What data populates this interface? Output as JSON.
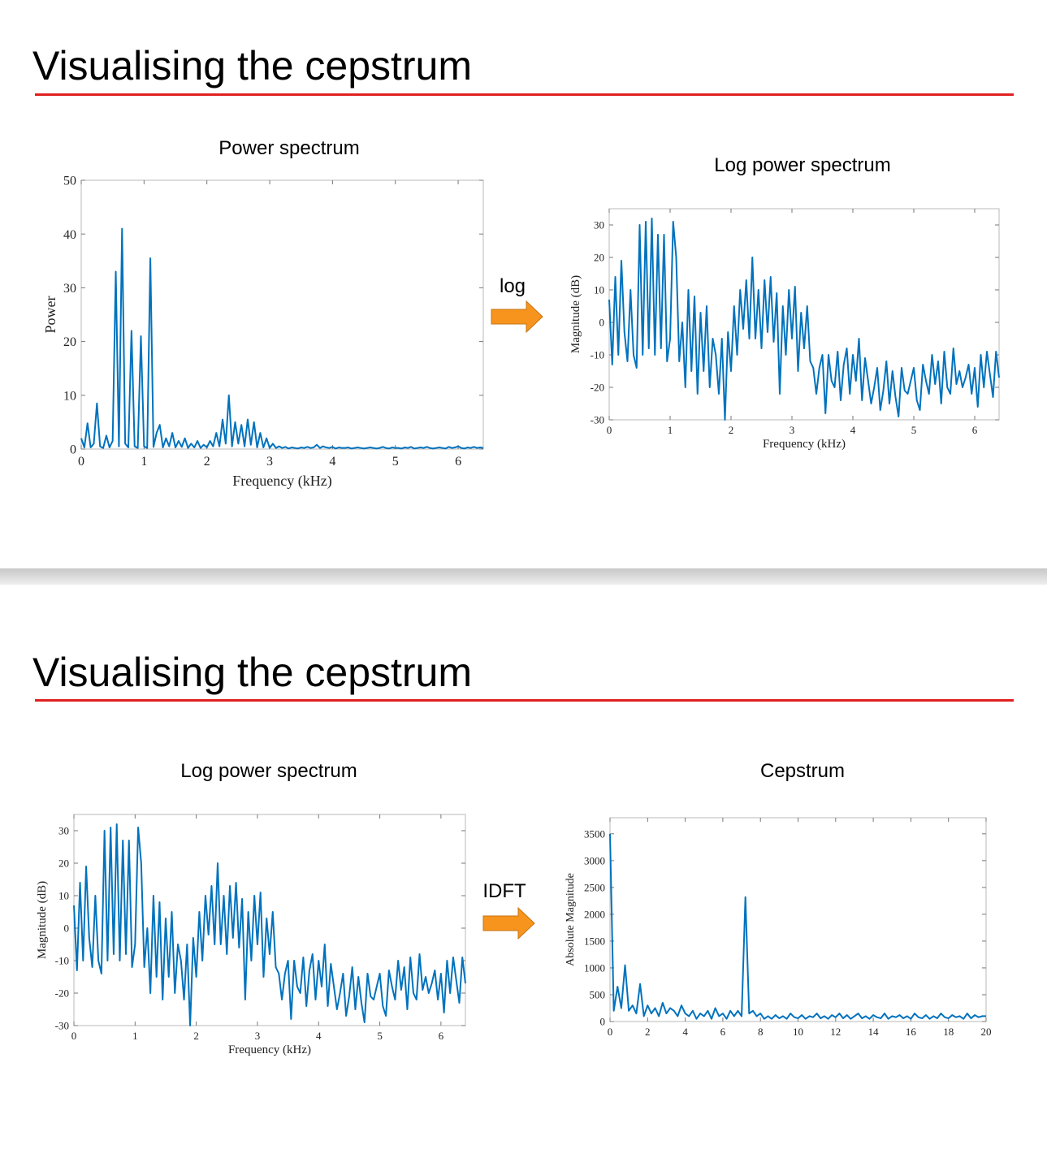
{
  "slides": [
    {
      "title": "Visualising the cepstrum",
      "arrow_label": "log"
    },
    {
      "title": "Visualising the cepstrum",
      "arrow_label": "IDFT"
    }
  ],
  "chart_data": [
    {
      "type": "line",
      "title": "Power spectrum",
      "xlabel": "Frequency (kHz)",
      "ylabel": "Power",
      "color": "#0072bd",
      "xlim": [
        0,
        6.4
      ],
      "ylim": [
        0,
        50
      ],
      "xticks": [
        0,
        1,
        2,
        3,
        4,
        5,
        6
      ],
      "yticks": [
        0,
        10,
        20,
        30,
        40,
        50
      ],
      "x": [
        0,
        0.05,
        0.1,
        0.15,
        0.2,
        0.25,
        0.3,
        0.35,
        0.4,
        0.45,
        0.5,
        0.55,
        0.6,
        0.65,
        0.7,
        0.75,
        0.8,
        0.85,
        0.9,
        0.95,
        1,
        1.05,
        1.1,
        1.15,
        1.2,
        1.25,
        1.3,
        1.35,
        1.4,
        1.45,
        1.5,
        1.55,
        1.6,
        1.65,
        1.7,
        1.75,
        1.8,
        1.85,
        1.9,
        1.95,
        2,
        2.05,
        2.1,
        2.15,
        2.2,
        2.25,
        2.3,
        2.35,
        2.4,
        2.45,
        2.5,
        2.55,
        2.6,
        2.65,
        2.7,
        2.75,
        2.8,
        2.85,
        2.9,
        2.95,
        3,
        3.05,
        3.1,
        3.15,
        3.2,
        3.25,
        3.3,
        3.35,
        3.4,
        3.45,
        3.5,
        3.55,
        3.6,
        3.65,
        3.7,
        3.75,
        3.8,
        3.85,
        3.9,
        3.95,
        4,
        4.05,
        4.1,
        4.15,
        4.2,
        4.25,
        4.3,
        4.35,
        4.4,
        4.45,
        4.5,
        4.55,
        4.6,
        4.65,
        4.7,
        4.75,
        4.8,
        4.85,
        4.9,
        4.95,
        5,
        5.05,
        5.1,
        5.15,
        5.2,
        5.25,
        5.3,
        5.35,
        5.4,
        5.45,
        5.5,
        5.55,
        5.6,
        5.65,
        5.7,
        5.75,
        5.8,
        5.85,
        5.9,
        5.95,
        6,
        6.05,
        6.1,
        6.15,
        6.2,
        6.25,
        6.3,
        6.35,
        6.4
      ],
      "values": [
        2,
        0.3,
        4.8,
        0.3,
        1,
        8.5,
        0.5,
        0.2,
        2.5,
        0.3,
        1.5,
        33,
        0.5,
        41,
        1,
        0.3,
        22,
        0.5,
        0.2,
        21,
        0.5,
        0.2,
        35.5,
        0.4,
        3,
        4.5,
        0.3,
        2,
        0.5,
        3,
        0.3,
        1.5,
        0.4,
        2,
        0.2,
        1,
        0.3,
        1.5,
        0.2,
        0.8,
        0.3,
        1.5,
        0.5,
        3,
        0.5,
        5.5,
        1,
        10,
        0.5,
        5,
        1,
        4.5,
        0.5,
        5.5,
        0.8,
        5,
        0.3,
        3,
        0.3,
        2,
        0.2,
        1,
        0.2,
        0.5,
        0.2,
        0.4,
        0.1,
        0.3,
        0.2,
        0.1,
        0.3,
        0.2,
        0.4,
        0.2,
        0.3,
        0.8,
        0.2,
        0.5,
        0.3,
        0.2,
        0.4,
        0.1,
        0.3,
        0.2,
        0.2,
        0.3,
        0.1,
        0.2,
        0.3,
        0.2,
        0.1,
        0.2,
        0.3,
        0.2,
        0.1,
        0.2,
        0.4,
        0.2,
        0.1,
        0.3,
        0.2,
        0.2,
        0.1,
        0.3,
        0.2,
        0.4,
        0.1,
        0.2,
        0.3,
        0.2,
        0.4,
        0.2,
        0.1,
        0.2,
        0.3,
        0.2,
        0.1,
        0.4,
        0.2,
        0.3,
        0.5,
        0.2,
        0.1,
        0.3,
        0.2,
        0.4,
        0.2,
        0.3,
        0.2
      ]
    },
    {
      "type": "line",
      "title": "Log power spectrum",
      "xlabel": "Frequency (kHz)",
      "ylabel": "Magnitude (dB)",
      "color": "#0072bd",
      "xlim": [
        0,
        6.4
      ],
      "ylim": [
        -30,
        35
      ],
      "xticks": [
        0,
        1,
        2,
        3,
        4,
        5,
        6
      ],
      "yticks": [
        -30,
        -20,
        -10,
        0,
        10,
        20,
        30
      ],
      "x": [
        0,
        0.05,
        0.1,
        0.15,
        0.2,
        0.25,
        0.3,
        0.35,
        0.4,
        0.45,
        0.5,
        0.55,
        0.6,
        0.65,
        0.7,
        0.75,
        0.8,
        0.85,
        0.9,
        0.95,
        1,
        1.05,
        1.1,
        1.15,
        1.2,
        1.25,
        1.3,
        1.35,
        1.4,
        1.45,
        1.5,
        1.55,
        1.6,
        1.65,
        1.7,
        1.75,
        1.8,
        1.85,
        1.9,
        1.95,
        2,
        2.05,
        2.1,
        2.15,
        2.2,
        2.25,
        2.3,
        2.35,
        2.4,
        2.45,
        2.5,
        2.55,
        2.6,
        2.65,
        2.7,
        2.75,
        2.8,
        2.85,
        2.9,
        2.95,
        3,
        3.05,
        3.1,
        3.15,
        3.2,
        3.25,
        3.3,
        3.35,
        3.4,
        3.45,
        3.5,
        3.55,
        3.6,
        3.65,
        3.7,
        3.75,
        3.8,
        3.85,
        3.9,
        3.95,
        4,
        4.05,
        4.1,
        4.15,
        4.2,
        4.25,
        4.3,
        4.35,
        4.4,
        4.45,
        4.5,
        4.55,
        4.6,
        4.65,
        4.7,
        4.75,
        4.8,
        4.85,
        4.9,
        4.95,
        5,
        5.05,
        5.1,
        5.15,
        5.2,
        5.25,
        5.3,
        5.35,
        5.4,
        5.45,
        5.5,
        5.55,
        5.6,
        5.65,
        5.7,
        5.75,
        5.8,
        5.85,
        5.9,
        5.95,
        6,
        6.05,
        6.1,
        6.15,
        6.2,
        6.25,
        6.3,
        6.35,
        6.4
      ],
      "values": [
        7,
        -13,
        14,
        -10,
        19,
        -3,
        -12,
        10,
        -10,
        -14,
        30,
        -10,
        31,
        -8,
        32,
        -10,
        27,
        -8,
        27,
        -12,
        -5,
        31,
        20,
        -12,
        0,
        -20,
        10,
        -15,
        8,
        -22,
        3,
        -15,
        5,
        -20,
        -5,
        -10,
        -22,
        -5,
        -30,
        -3,
        -15,
        5,
        -10,
        10,
        -2,
        13,
        -5,
        20,
        -5,
        10,
        -8,
        13,
        -3,
        14,
        -6,
        9,
        -22,
        5,
        -10,
        10,
        -5,
        11,
        -15,
        3,
        -8,
        5,
        -12,
        -14,
        -22,
        -14,
        -10,
        -28,
        -10,
        -18,
        -20,
        -9,
        -24,
        -13,
        -8,
        -22,
        -10,
        -18,
        -5,
        -24,
        -11,
        -18,
        -25,
        -20,
        -14,
        -27,
        -21,
        -12,
        -25,
        -15,
        -23,
        -29,
        -14,
        -21,
        -22,
        -18,
        -14,
        -24,
        -27,
        -13,
        -18,
        -22,
        -10,
        -19,
        -12,
        -25,
        -9,
        -20,
        -22,
        -8,
        -19,
        -15,
        -20,
        -17,
        -13,
        -22,
        -14,
        -26,
        -10,
        -20,
        -9,
        -16,
        -23,
        -9,
        -17
      ]
    },
    {
      "type": "line",
      "title": "Log power spectrum",
      "xlabel": "Frequency (kHz)",
      "ylabel": "Magnitude (dB)",
      "color": "#0072bd",
      "xlim": [
        0,
        6.4
      ],
      "ylim": [
        -30,
        35
      ],
      "xticks": [
        0,
        1,
        2,
        3,
        4,
        5,
        6
      ],
      "yticks": [
        -30,
        -20,
        -10,
        0,
        10,
        20,
        30
      ],
      "x": [
        0,
        0.05,
        0.1,
        0.15,
        0.2,
        0.25,
        0.3,
        0.35,
        0.4,
        0.45,
        0.5,
        0.55,
        0.6,
        0.65,
        0.7,
        0.75,
        0.8,
        0.85,
        0.9,
        0.95,
        1,
        1.05,
        1.1,
        1.15,
        1.2,
        1.25,
        1.3,
        1.35,
        1.4,
        1.45,
        1.5,
        1.55,
        1.6,
        1.65,
        1.7,
        1.75,
        1.8,
        1.85,
        1.9,
        1.95,
        2,
        2.05,
        2.1,
        2.15,
        2.2,
        2.25,
        2.3,
        2.35,
        2.4,
        2.45,
        2.5,
        2.55,
        2.6,
        2.65,
        2.7,
        2.75,
        2.8,
        2.85,
        2.9,
        2.95,
        3,
        3.05,
        3.1,
        3.15,
        3.2,
        3.25,
        3.3,
        3.35,
        3.4,
        3.45,
        3.5,
        3.55,
        3.6,
        3.65,
        3.7,
        3.75,
        3.8,
        3.85,
        3.9,
        3.95,
        4,
        4.05,
        4.1,
        4.15,
        4.2,
        4.25,
        4.3,
        4.35,
        4.4,
        4.45,
        4.5,
        4.55,
        4.6,
        4.65,
        4.7,
        4.75,
        4.8,
        4.85,
        4.9,
        4.95,
        5,
        5.05,
        5.1,
        5.15,
        5.2,
        5.25,
        5.3,
        5.35,
        5.4,
        5.45,
        5.5,
        5.55,
        5.6,
        5.65,
        5.7,
        5.75,
        5.8,
        5.85,
        5.9,
        5.95,
        6,
        6.05,
        6.1,
        6.15,
        6.2,
        6.25,
        6.3,
        6.35,
        6.4
      ],
      "values": [
        7,
        -13,
        14,
        -10,
        19,
        -3,
        -12,
        10,
        -10,
        -14,
        30,
        -10,
        31,
        -8,
        32,
        -10,
        27,
        -8,
        27,
        -12,
        -5,
        31,
        20,
        -12,
        0,
        -20,
        10,
        -15,
        8,
        -22,
        3,
        -15,
        5,
        -20,
        -5,
        -10,
        -22,
        -5,
        -30,
        -3,
        -15,
        5,
        -10,
        10,
        -2,
        13,
        -5,
        20,
        -5,
        10,
        -8,
        13,
        -3,
        14,
        -6,
        9,
        -22,
        5,
        -10,
        10,
        -5,
        11,
        -15,
        3,
        -8,
        5,
        -12,
        -14,
        -22,
        -14,
        -10,
        -28,
        -10,
        -18,
        -20,
        -9,
        -24,
        -13,
        -8,
        -22,
        -10,
        -18,
        -5,
        -24,
        -11,
        -18,
        -25,
        -20,
        -14,
        -27,
        -21,
        -12,
        -25,
        -15,
        -23,
        -29,
        -14,
        -21,
        -22,
        -18,
        -14,
        -24,
        -27,
        -13,
        -18,
        -22,
        -10,
        -19,
        -12,
        -25,
        -9,
        -20,
        -22,
        -8,
        -19,
        -15,
        -20,
        -17,
        -13,
        -22,
        -14,
        -26,
        -10,
        -20,
        -9,
        -16,
        -23,
        -9,
        -17
      ]
    },
    {
      "type": "line",
      "title": "Cepstrum",
      "ylabel": "Absolute Magnitude",
      "color": "#0072bd",
      "xlim": [
        0,
        20
      ],
      "ylim": [
        0,
        3800
      ],
      "xticks": [
        0,
        2,
        4,
        6,
        8,
        10,
        12,
        14,
        16,
        18,
        20
      ],
      "yticks": [
        0,
        500,
        1000,
        1500,
        2000,
        2500,
        3000,
        3500
      ],
      "x": [
        0,
        0.2,
        0.4,
        0.6,
        0.8,
        1,
        1.2,
        1.4,
        1.6,
        1.8,
        2,
        2.2,
        2.4,
        2.6,
        2.8,
        3,
        3.2,
        3.4,
        3.6,
        3.8,
        4,
        4.2,
        4.4,
        4.6,
        4.8,
        5,
        5.2,
        5.4,
        5.6,
        5.8,
        6,
        6.2,
        6.4,
        6.6,
        6.8,
        7,
        7.2,
        7.4,
        7.6,
        7.8,
        8,
        8.2,
        8.4,
        8.6,
        8.8,
        9,
        9.2,
        9.4,
        9.6,
        9.8,
        10,
        10.2,
        10.4,
        10.6,
        10.8,
        11,
        11.2,
        11.4,
        11.6,
        11.8,
        12,
        12.2,
        12.4,
        12.6,
        12.8,
        13,
        13.2,
        13.4,
        13.6,
        13.8,
        14,
        14.2,
        14.4,
        14.6,
        14.8,
        15,
        15.2,
        15.4,
        15.6,
        15.8,
        16,
        16.2,
        16.4,
        16.6,
        16.8,
        17,
        17.2,
        17.4,
        17.6,
        17.8,
        18,
        18.2,
        18.4,
        18.6,
        18.8,
        19,
        19.2,
        19.4,
        19.6,
        19.8,
        20
      ],
      "values": [
        3500,
        200,
        650,
        250,
        1050,
        200,
        300,
        150,
        700,
        100,
        300,
        150,
        250,
        100,
        350,
        150,
        250,
        200,
        100,
        300,
        150,
        100,
        200,
        50,
        150,
        100,
        200,
        50,
        250,
        100,
        150,
        50,
        200,
        100,
        200,
        100,
        2320,
        150,
        200,
        100,
        150,
        50,
        100,
        50,
        120,
        60,
        100,
        50,
        150,
        80,
        60,
        120,
        50,
        100,
        80,
        150,
        60,
        100,
        50,
        120,
        80,
        150,
        60,
        120,
        50,
        100,
        150,
        60,
        100,
        50,
        120,
        80,
        60,
        150,
        50,
        100,
        80,
        120,
        60,
        100,
        50,
        150,
        80,
        60,
        120,
        50,
        100,
        60,
        150,
        80,
        60,
        120,
        80,
        100,
        50,
        150,
        60,
        120,
        80,
        100,
        100
      ]
    }
  ]
}
